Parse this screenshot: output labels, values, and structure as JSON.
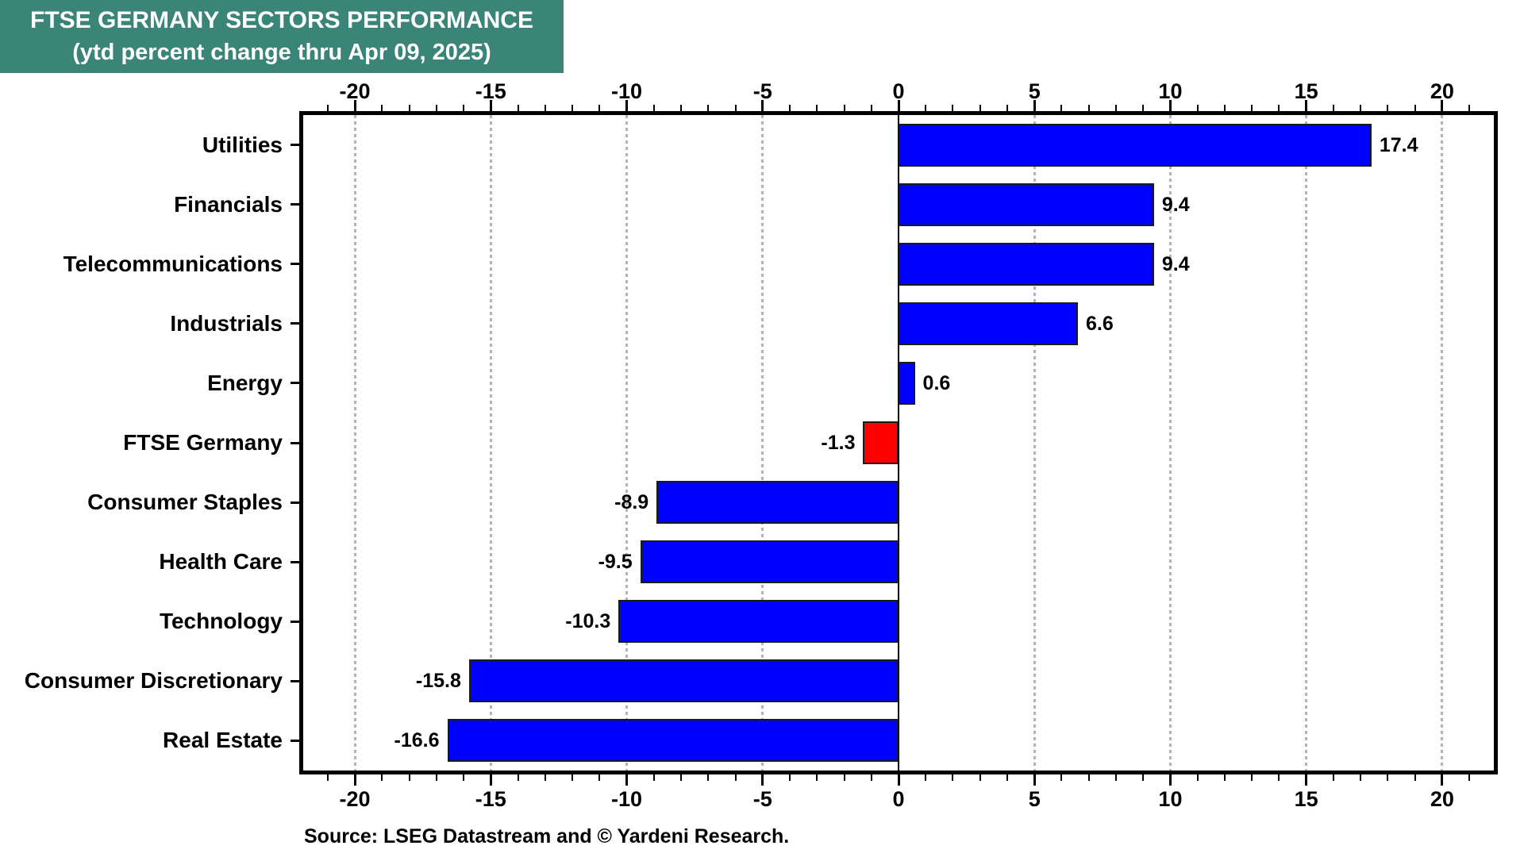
{
  "banner": {
    "title": "FTSE GERMANY SECTORS PERFORMANCE",
    "subtitle": "(ytd percent change thru Apr 09, 2025)",
    "bg_color": "#3A8577",
    "text_color": "#FFFFFF"
  },
  "chart_data": {
    "type": "bar",
    "orientation": "horizontal",
    "title": "FTSE GERMANY SECTORS PERFORMANCE (ytd percent change thru Apr 09, 2025)",
    "categories": [
      "Utilities",
      "Financials",
      "Telecommunications",
      "Industrials",
      "Energy",
      "FTSE Germany",
      "Consumer Staples",
      "Health Care",
      "Technology",
      "Consumer Discretionary",
      "Real Estate"
    ],
    "values": [
      17.4,
      9.4,
      9.4,
      6.6,
      0.6,
      -1.3,
      -8.9,
      -9.5,
      -10.3,
      -15.8,
      -16.6
    ],
    "value_labels": [
      "17.4",
      "9.4",
      "9.4",
      "6.6",
      "0.6",
      "-1.3",
      "-8.9",
      "-9.5",
      "-10.3",
      "-15.8",
      "-16.6"
    ],
    "highlight_index": 5,
    "default_bar_color": "#0000FF",
    "highlight_bar_color": "#FF0000",
    "bar_border_color": "#1a1a1a",
    "xlim": [
      -21.9,
      21.9
    ],
    "major_ticks": [
      -20,
      -15,
      -10,
      -5,
      0,
      5,
      10,
      15,
      20
    ],
    "minor_tick_step": 1,
    "gridline_values": [
      -20,
      -15,
      -10,
      -5,
      5,
      10,
      15,
      20
    ],
    "gridline_color": "#b4b4b4",
    "grid_style": "dotted-vertical",
    "zero_line": true,
    "legend": "none",
    "xlabel": "",
    "ylabel": ""
  },
  "source": {
    "text": "Source: LSEG Datastream and © Yardeni Research."
  }
}
